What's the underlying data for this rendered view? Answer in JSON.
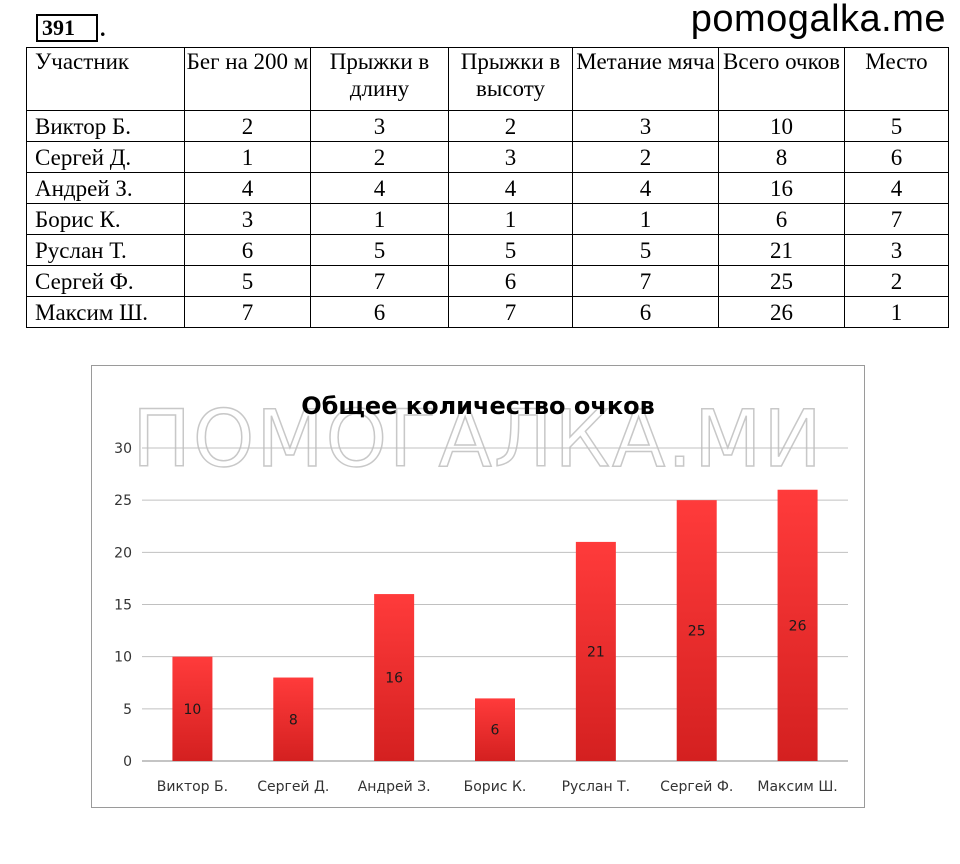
{
  "header": {
    "problem_number": "391",
    "problem_suffix": ".",
    "site": "pomogalka.me"
  },
  "table": {
    "columns": [
      "Участник",
      "Бег на 200 м",
      "Прыжки в длину",
      "Прыжки в высоту",
      "Метание мяча",
      "Всего очков",
      "Место"
    ],
    "rows": [
      [
        "Виктор Б.",
        "2",
        "3",
        "2",
        "3",
        "10",
        "5"
      ],
      [
        "Сергей Д.",
        "1",
        "2",
        "3",
        "2",
        "8",
        "6"
      ],
      [
        "Андрей З.",
        "4",
        "4",
        "4",
        "4",
        "16",
        "4"
      ],
      [
        "Борис К.",
        "3",
        "1",
        "1",
        "1",
        "6",
        "7"
      ],
      [
        "Руслан Т.",
        "6",
        "5",
        "5",
        "5",
        "21",
        "3"
      ],
      [
        "Сергей Ф.",
        "5",
        "7",
        "6",
        "7",
        "25",
        "2"
      ],
      [
        "Максим Ш.",
        "7",
        "6",
        "7",
        "6",
        "26",
        "1"
      ]
    ]
  },
  "watermark": "ПОМОГАЛКА.МИ",
  "colors": {
    "bar_top": "#ff3b3b",
    "bar_bottom": "#d42020",
    "grid": "#c0c0c0",
    "frame": "#9a9a9a"
  },
  "chart_data": {
    "type": "bar",
    "title": "Общее количество очков",
    "categories": [
      "Виктор Б.",
      "Сергей Д.",
      "Андрей З.",
      "Борис К.",
      "Руслан Т.",
      "Сергей Ф.",
      "Максим Ш."
    ],
    "values": [
      10,
      8,
      16,
      6,
      21,
      25,
      26
    ],
    "yticks": [
      "0",
      "5",
      "10",
      "15",
      "20",
      "25",
      "30"
    ],
    "ylim": [
      0,
      30
    ],
    "grid": true,
    "legend": "none",
    "data_labels": true
  }
}
